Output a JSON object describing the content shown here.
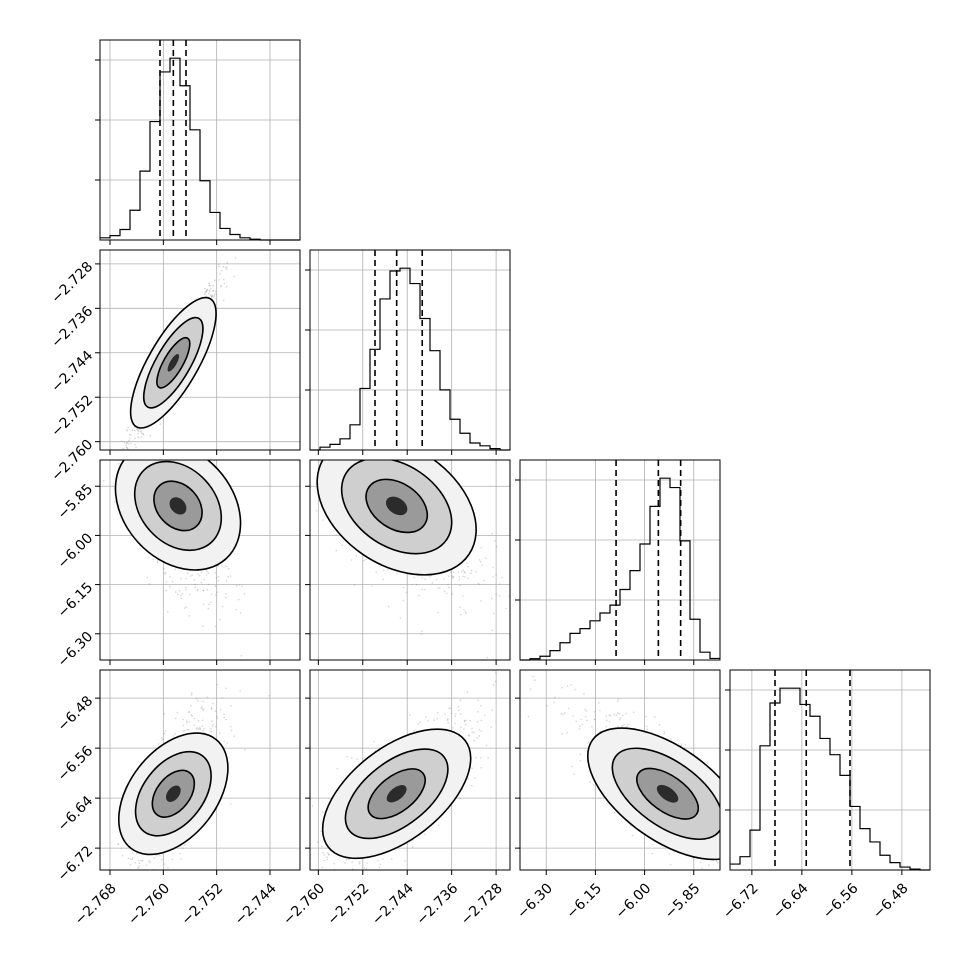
{
  "chart_data": {
    "type": "corner",
    "parameters": 4,
    "grid": true,
    "axes": [
      {
        "range": [
          -2.7695,
          -2.7395
        ],
        "ticks": [
          -2.768,
          -2.76,
          -2.752,
          -2.744
        ],
        "tick_labels": [
          "−2.768",
          "−2.760",
          "−2.752",
          "−2.744"
        ]
      },
      {
        "range": [
          -2.7615,
          -2.7255
        ],
        "ticks": [
          -2.76,
          -2.752,
          -2.744,
          -2.736,
          -2.728
        ],
        "tick_labels": [
          "−2.760",
          "−2.752",
          "−2.744",
          "−2.736",
          "−2.728"
        ]
      },
      {
        "range": [
          -6.38,
          -5.77
        ],
        "ticks": [
          -6.3,
          -6.15,
          -6.0,
          -5.85
        ],
        "tick_labels": [
          "−6.30",
          "−6.15",
          "−6.00",
          "−5.85"
        ]
      },
      {
        "range": [
          -6.755,
          -6.435
        ],
        "ticks": [
          -6.72,
          -6.64,
          -6.56,
          -6.48
        ],
        "tick_labels": [
          "−6.72",
          "−6.64",
          "−6.56",
          "−6.48"
        ]
      }
    ],
    "quantiles": [
      [
        -2.7605,
        -2.7585,
        -2.7566
      ],
      [
        -2.7498,
        -2.7459,
        -2.7413
      ],
      [
        -6.087,
        -5.958,
        -5.89
      ],
      [
        -6.683,
        -6.633,
        -6.563
      ]
    ],
    "histograms": [
      {
        "bin_edges": [
          -2.7695,
          -2.768,
          -2.7665,
          -2.765,
          -2.7635,
          -2.762,
          -2.7605,
          -2.759,
          -2.7575,
          -2.756,
          -2.7545,
          -2.753,
          -2.7515,
          -2.75,
          -2.7485,
          -2.747,
          -2.7455,
          -2.744,
          -2.7425,
          -2.741,
          -2.7395
        ],
        "counts": [
          8,
          16,
          38,
          108,
          250,
          430,
          610,
          660,
          560,
          400,
          215,
          100,
          42,
          20,
          8,
          3,
          0,
          0,
          0,
          0
        ]
      },
      {
        "bin_edges": [
          -2.7615,
          -2.7597,
          -2.7579,
          -2.7561,
          -2.7543,
          -2.7525,
          -2.7507,
          -2.7489,
          -2.7471,
          -2.7453,
          -2.7435,
          -2.7417,
          -2.7399,
          -2.7381,
          -2.7363,
          -2.7345,
          -2.7327,
          -2.7309,
          -2.7291,
          -2.7273,
          -2.7255
        ],
        "counts": [
          0,
          10,
          20,
          40,
          90,
          220,
          360,
          540,
          640,
          650,
          595,
          470,
          355,
          215,
          110,
          60,
          25,
          15,
          5,
          0
        ]
      },
      {
        "bin_edges": [
          -6.38,
          -6.3495,
          -6.319,
          -6.2885,
          -6.258,
          -6.2275,
          -6.197,
          -6.1665,
          -6.136,
          -6.1055,
          -6.075,
          -6.0445,
          -6.014,
          -5.9835,
          -5.953,
          -5.9225,
          -5.892,
          -5.8615,
          -5.831,
          -5.8005,
          -5.77
        ],
        "counts": [
          0,
          4,
          12,
          30,
          55,
          85,
          100,
          125,
          150,
          175,
          225,
          285,
          370,
          490,
          580,
          550,
          380,
          130,
          25,
          5
        ]
      },
      {
        "bin_edges": [
          -6.755,
          -6.739,
          -6.723,
          -6.707,
          -6.691,
          -6.675,
          -6.659,
          -6.643,
          -6.627,
          -6.611,
          -6.595,
          -6.579,
          -6.563,
          -6.547,
          -6.531,
          -6.515,
          -6.499,
          -6.483,
          -6.467,
          -6.451,
          -6.435
        ],
        "counts": [
          20,
          45,
          135,
          420,
          565,
          615,
          615,
          560,
          520,
          445,
          390,
          320,
          215,
          140,
          95,
          50,
          25,
          10,
          3,
          0
        ]
      }
    ],
    "pairs": [
      {
        "row": 1,
        "col": 0,
        "center": [
          -2.7585,
          -2.7458
        ],
        "sigma": [
          0.0021,
          0.0045
        ],
        "rho": 0.97
      },
      {
        "row": 2,
        "col": 0,
        "center": [
          -2.7578,
          -5.91
        ],
        "sigma": [
          0.0021,
          0.085
        ],
        "rho": -0.55
      },
      {
        "row": 2,
        "col": 1,
        "center": [
          -2.7459,
          -5.91
        ],
        "sigma": [
          0.0045,
          0.085
        ],
        "rho": -0.6
      },
      {
        "row": 3,
        "col": 0,
        "center": [
          -2.7585,
          -6.633
        ],
        "sigma": [
          0.0021,
          0.04
        ],
        "rho": 0.72
      },
      {
        "row": 3,
        "col": 1,
        "center": [
          -2.7459,
          -6.633
        ],
        "sigma": [
          0.0045,
          0.04
        ],
        "rho": 0.78
      },
      {
        "row": 3,
        "col": 2,
        "center": [
          -5.93,
          -6.633
        ],
        "sigma": [
          0.085,
          0.04
        ],
        "rho": -0.8
      }
    ]
  }
}
